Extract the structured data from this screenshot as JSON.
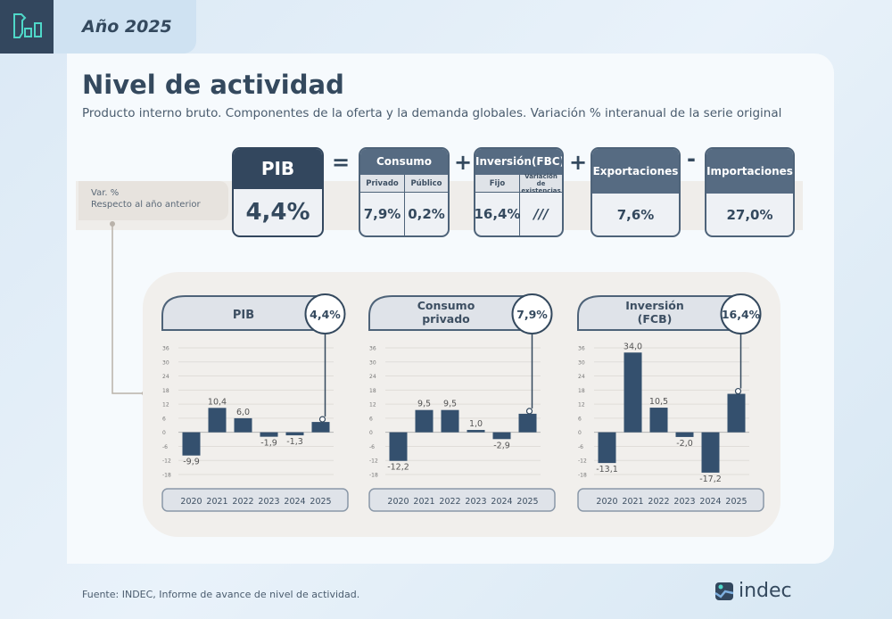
{
  "header": {
    "year": "Año 2025"
  },
  "title": "Nivel de actividad",
  "subtitle": "Producto interno bruto. Componentes de la oferta y la demanda globales. Variación % interanual de la serie original",
  "var_label": {
    "line1": "Var. %",
    "line2": "Respecto al año anterior"
  },
  "equation": {
    "pib": {
      "label": "PIB",
      "value": "4,4%"
    },
    "eq": "=",
    "plus": "+",
    "minus": "-",
    "consumo": {
      "label": "Consumo",
      "privado": "Privado",
      "publico": "Público",
      "privado_value": "7,9%",
      "publico_value": "0,2%"
    },
    "inversion": {
      "label": "Inversión(FBC)",
      "fijo": "Fijo",
      "variacion": "Variación de existencias",
      "fijo_value": "16,4%",
      "variacion_value": "///"
    },
    "exportaciones": {
      "label": "Exportaciones",
      "value": "7,6%"
    },
    "importaciones": {
      "label": "Importaciones",
      "value": "27,0%"
    }
  },
  "colors": {
    "bar": "#34506e",
    "accent_dark": "#33475e",
    "teal": "#4fd8c9"
  },
  "chart_data": [
    {
      "type": "bar",
      "title": "PIB",
      "badge": "4,4%",
      "ylabel": "%",
      "ylim": [
        -18,
        36
      ],
      "yticks": [
        36,
        30,
        24,
        18,
        12,
        6,
        0,
        -6,
        -12,
        -18
      ],
      "categories": [
        "2020",
        "2021",
        "2022",
        "2023",
        "2024",
        "2025"
      ],
      "values": [
        -9.9,
        10.4,
        6.0,
        -1.9,
        -1.3,
        4.4
      ],
      "labels": [
        "-9,9",
        "10,4",
        "6,0",
        "-1,9",
        "-1,3",
        ""
      ],
      "grid": true
    },
    {
      "type": "bar",
      "title": "Consumo privado",
      "badge": "7,9%",
      "ylabel": "%",
      "ylim": [
        -18,
        36
      ],
      "yticks": [
        36,
        30,
        24,
        18,
        12,
        6,
        0,
        -6,
        -12,
        -18
      ],
      "categories": [
        "2020",
        "2021",
        "2022",
        "2023",
        "2024",
        "2025"
      ],
      "values": [
        -12.2,
        9.5,
        9.5,
        1.0,
        -2.9,
        7.9
      ],
      "labels": [
        "-12,2",
        "9,5",
        "9,5",
        "1,0",
        "-2,9",
        ""
      ],
      "grid": true
    },
    {
      "type": "bar",
      "title": "Inversión (FCB)",
      "badge": "16,4%",
      "ylabel": "%",
      "ylim": [
        -18,
        36
      ],
      "yticks": [
        36,
        30,
        24,
        18,
        12,
        6,
        0,
        -6,
        -12,
        -18
      ],
      "categories": [
        "2020",
        "2021",
        "2022",
        "2023",
        "2024",
        "2025"
      ],
      "values": [
        -13.1,
        34.0,
        10.5,
        -2.0,
        -17.2,
        16.4
      ],
      "labels": [
        "-13,1",
        "34,0",
        "10,5",
        "-2,0",
        "-17,2",
        ""
      ],
      "grid": true
    }
  ],
  "footer": {
    "source": "Fuente: INDEC, Informe de avance de nivel de actividad.",
    "brand": "indec"
  }
}
